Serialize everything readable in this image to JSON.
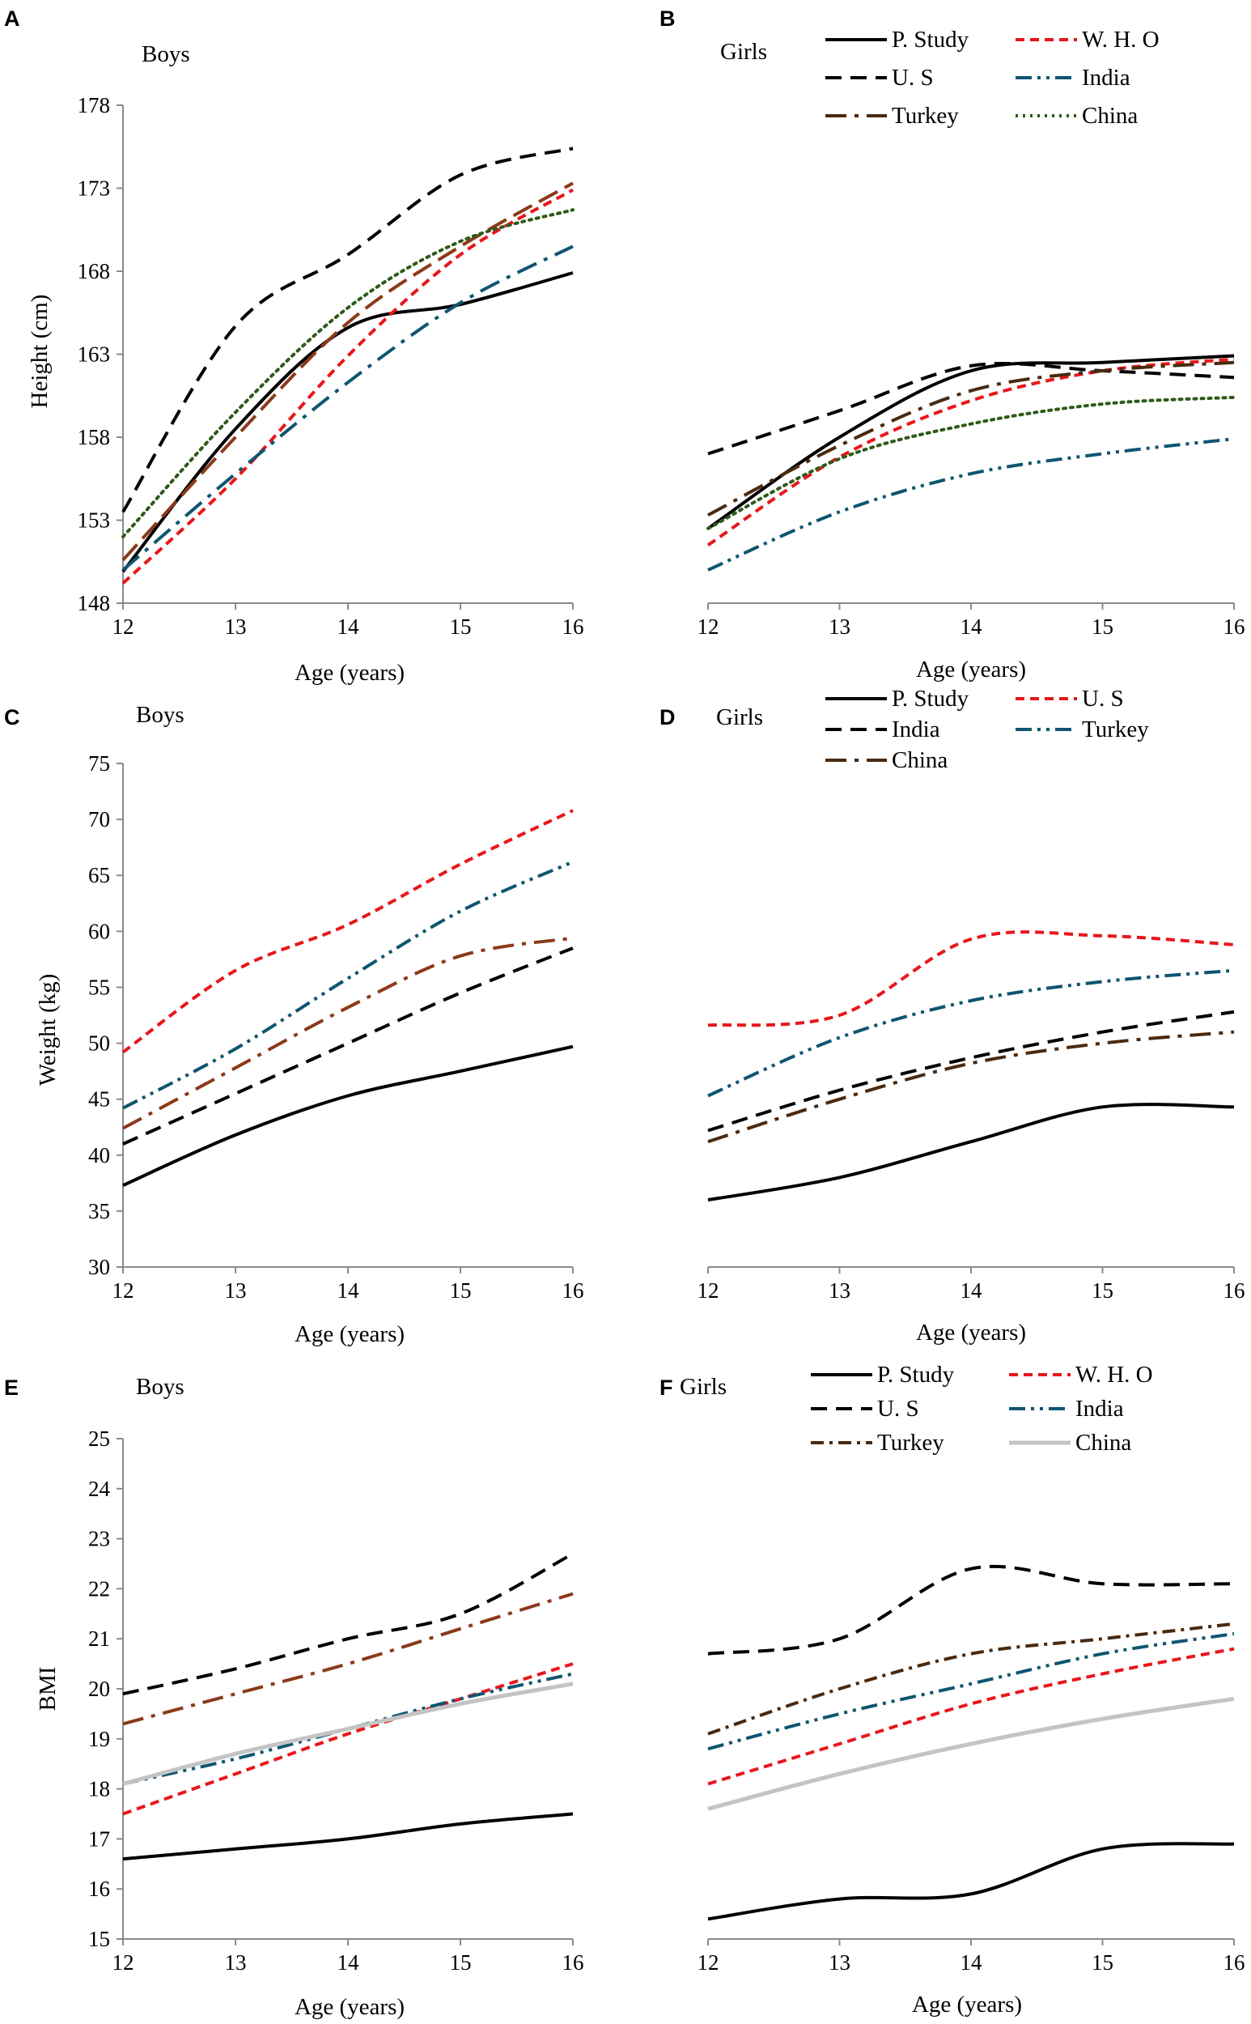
{
  "figure": {
    "colors": {
      "black": "#000000",
      "red": "#e8171b",
      "darkblue": "#003b5c",
      "teal": "#0f5570",
      "brown": "#8b3a1a",
      "darkbrown": "#4a2a10",
      "green": "#2e5a1a",
      "gray": "#c4c4c4"
    }
  },
  "chart_data": [
    {
      "panel": "A",
      "title": "Boys",
      "type": "line",
      "xlabel": "Age (years)",
      "ylabel": "Height (cm)",
      "xlim": [
        12,
        16
      ],
      "ylim": [
        148,
        178
      ],
      "xticks": [
        12,
        13,
        14,
        15,
        16
      ],
      "yticks": [
        148,
        153,
        158,
        163,
        168,
        173,
        178
      ],
      "x": [
        12,
        13,
        14,
        15,
        16
      ],
      "legend": false,
      "series": [
        {
          "name": "P. Study",
          "values": [
            149.9,
            158.5,
            164.6,
            166.0,
            167.9
          ],
          "color": "#000000",
          "dash": "solid",
          "width": 4
        },
        {
          "name": "W. H. O",
          "values": [
            149.2,
            155.5,
            162.9,
            169.0,
            172.9
          ],
          "color": "#e8171b",
          "dash": "short",
          "width": 4
        },
        {
          "name": "U. S",
          "values": [
            153.5,
            164.7,
            169.0,
            173.8,
            175.4
          ],
          "color": "#000000",
          "dash": "long",
          "width": 4
        },
        {
          "name": "India",
          "values": [
            150.0,
            155.8,
            161.3,
            166.1,
            169.5
          ],
          "color": "#0f5570",
          "dash": "longdashdot",
          "width": 4
        },
        {
          "name": "Turkey",
          "values": [
            150.6,
            158.0,
            164.9,
            169.5,
            173.3
          ],
          "color": "#8b3a1a",
          "dash": "longdash",
          "width": 4
        },
        {
          "name": "China",
          "values": [
            152.0,
            159.5,
            165.8,
            169.8,
            171.7
          ],
          "color": "#2e5a1a",
          "dash": "dot",
          "width": 4
        }
      ]
    },
    {
      "panel": "B",
      "title": "Girls",
      "type": "line",
      "xlabel": "Age (years)",
      "ylabel": "",
      "xlim": [
        12,
        16
      ],
      "ylim": [
        148,
        178
      ],
      "xticks": [
        12,
        13,
        14,
        15,
        16
      ],
      "yticks": [],
      "x": [
        12,
        13,
        14,
        15,
        16
      ],
      "legend": true,
      "series": [
        {
          "name": "P. Study",
          "values": [
            152.5,
            158.0,
            162.0,
            162.5,
            162.9
          ],
          "color": "#000000",
          "dash": "solid",
          "width": 4
        },
        {
          "name": "W. H. O",
          "values": [
            151.5,
            156.8,
            160.2,
            162.0,
            162.7
          ],
          "color": "#e8171b",
          "dash": "short",
          "width": 4
        },
        {
          "name": "U. S",
          "values": [
            157.0,
            159.6,
            162.3,
            162.0,
            161.6
          ],
          "color": "#000000",
          "dash": "long",
          "width": 4
        },
        {
          "name": "India",
          "values": [
            150.0,
            153.5,
            155.8,
            157.0,
            157.9
          ],
          "color": "#0f5570",
          "dash": "dashdotdot",
          "width": 4
        },
        {
          "name": "Turkey",
          "values": [
            153.3,
            157.5,
            160.8,
            162.0,
            162.5
          ],
          "color": "#4a2a10",
          "dash": "longdashdot",
          "width": 4
        },
        {
          "name": "China",
          "values": [
            152.5,
            156.7,
            158.8,
            160.0,
            160.4
          ],
          "color": "#2e5a1a",
          "dash": "dot",
          "width": 4
        }
      ]
    },
    {
      "panel": "C",
      "title": "Boys",
      "type": "line",
      "xlabel": "Age (years)",
      "ylabel": "Weight (kg)",
      "xlim": [
        12,
        16
      ],
      "ylim": [
        30,
        75
      ],
      "xticks": [
        12,
        13,
        14,
        15,
        16
      ],
      "yticks": [
        30,
        35,
        40,
        45,
        50,
        55,
        60,
        65,
        70,
        75
      ],
      "x": [
        12,
        13,
        14,
        15,
        16
      ],
      "legend": false,
      "series": [
        {
          "name": "P. Study",
          "values": [
            37.3,
            41.8,
            45.3,
            47.5,
            49.7
          ],
          "color": "#000000",
          "dash": "solid",
          "width": 4
        },
        {
          "name": "U. S",
          "values": [
            49.2,
            56.5,
            60.6,
            66.0,
            70.8
          ],
          "color": "#e8171b",
          "dash": "short",
          "width": 4
        },
        {
          "name": "India",
          "values": [
            41.0,
            45.5,
            50.0,
            54.5,
            58.5
          ],
          "color": "#000000",
          "dash": "long",
          "width": 4
        },
        {
          "name": "Turkey",
          "values": [
            44.2,
            49.5,
            55.8,
            61.8,
            66.2
          ],
          "color": "#0f5570",
          "dash": "dashdotdot",
          "width": 4
        },
        {
          "name": "China",
          "values": [
            42.4,
            47.8,
            53.2,
            57.8,
            59.4
          ],
          "color": "#8b3a1a",
          "dash": "longdashdot",
          "width": 4
        }
      ]
    },
    {
      "panel": "D",
      "title": "Girls",
      "type": "line",
      "xlabel": "Age (years)",
      "ylabel": "",
      "xlim": [
        12,
        16
      ],
      "ylim": [
        30,
        75
      ],
      "xticks": [
        12,
        13,
        14,
        15,
        16
      ],
      "yticks": [],
      "x": [
        12,
        13,
        14,
        15,
        16
      ],
      "legend": true,
      "series": [
        {
          "name": "P. Study",
          "values": [
            36.0,
            38.0,
            41.2,
            44.3,
            44.3
          ],
          "color": "#000000",
          "dash": "solid",
          "width": 4
        },
        {
          "name": "U. S",
          "values": [
            51.6,
            52.5,
            59.3,
            59.6,
            58.8
          ],
          "color": "#e8171b",
          "dash": "short",
          "width": 4
        },
        {
          "name": "India",
          "values": [
            42.2,
            45.8,
            48.7,
            51.0,
            52.8
          ],
          "color": "#000000",
          "dash": "long",
          "width": 4
        },
        {
          "name": "Turkey",
          "values": [
            45.3,
            50.5,
            53.8,
            55.5,
            56.5
          ],
          "color": "#0f5570",
          "dash": "dashdotdot",
          "width": 4
        },
        {
          "name": "China",
          "values": [
            41.2,
            45.0,
            48.2,
            50.0,
            51.0
          ],
          "color": "#4a2a10",
          "dash": "longdashdot",
          "width": 4
        }
      ]
    },
    {
      "panel": "E",
      "title": "Boys",
      "type": "line",
      "xlabel": "Age (years)",
      "ylabel": "BMI",
      "xlim": [
        12,
        16
      ],
      "ylim": [
        15,
        25
      ],
      "xticks": [
        12,
        13,
        14,
        15,
        16
      ],
      "yticks": [
        15,
        16,
        17,
        18,
        19,
        20,
        21,
        22,
        23,
        24,
        25
      ],
      "x": [
        12,
        13,
        14,
        15,
        16
      ],
      "legend": false,
      "series": [
        {
          "name": "P. Study",
          "values": [
            16.6,
            16.8,
            17.0,
            17.3,
            17.5
          ],
          "color": "#000000",
          "dash": "solid",
          "width": 4
        },
        {
          "name": "W. H. O",
          "values": [
            17.5,
            18.3,
            19.1,
            19.8,
            20.5
          ],
          "color": "#e8171b",
          "dash": "short",
          "width": 4
        },
        {
          "name": "U. S",
          "values": [
            19.9,
            20.4,
            21.0,
            21.5,
            22.7
          ],
          "color": "#000000",
          "dash": "long",
          "width": 4
        },
        {
          "name": "India",
          "values": [
            18.1,
            18.6,
            19.2,
            19.8,
            20.3
          ],
          "color": "#0f5570",
          "dash": "dashdotdot",
          "width": 4
        },
        {
          "name": "Turkey",
          "values": [
            19.3,
            19.9,
            20.5,
            21.2,
            21.9
          ],
          "color": "#8b3a1a",
          "dash": "longdashdot",
          "width": 4
        },
        {
          "name": "China",
          "values": [
            18.1,
            18.7,
            19.2,
            19.7,
            20.1
          ],
          "color": "#c4c4c4",
          "dash": "solid",
          "width": 5
        }
      ]
    },
    {
      "panel": "F",
      "title": "Girls",
      "type": "line",
      "xlabel": "Age (years)",
      "ylabel": "",
      "xlim": [
        12,
        16
      ],
      "ylim": [
        15,
        25
      ],
      "xticks": [
        12,
        13,
        14,
        15,
        16
      ],
      "yticks": [],
      "x": [
        12,
        13,
        14,
        15,
        16
      ],
      "legend": true,
      "series": [
        {
          "name": "P. Study",
          "values": [
            15.4,
            15.8,
            15.9,
            16.8,
            16.9
          ],
          "color": "#000000",
          "dash": "solid",
          "width": 4
        },
        {
          "name": "W. H. O",
          "values": [
            18.1,
            18.9,
            19.7,
            20.3,
            20.8
          ],
          "color": "#e8171b",
          "dash": "short",
          "width": 4
        },
        {
          "name": "U. S",
          "values": [
            20.7,
            21.0,
            22.4,
            22.1,
            22.1
          ],
          "color": "#000000",
          "dash": "long",
          "width": 4
        },
        {
          "name": "India",
          "values": [
            18.8,
            19.5,
            20.1,
            20.7,
            21.1
          ],
          "color": "#0f5570",
          "dash": "dashdotdot",
          "width": 4
        },
        {
          "name": "Turkey",
          "values": [
            19.1,
            20.0,
            20.7,
            21.0,
            21.3
          ],
          "color": "#4a2a10",
          "dash": "dashdot",
          "width": 4
        },
        {
          "name": "China",
          "values": [
            17.6,
            18.3,
            18.9,
            19.4,
            19.8
          ],
          "color": "#c4c4c4",
          "dash": "solid",
          "width": 5
        }
      ]
    }
  ]
}
